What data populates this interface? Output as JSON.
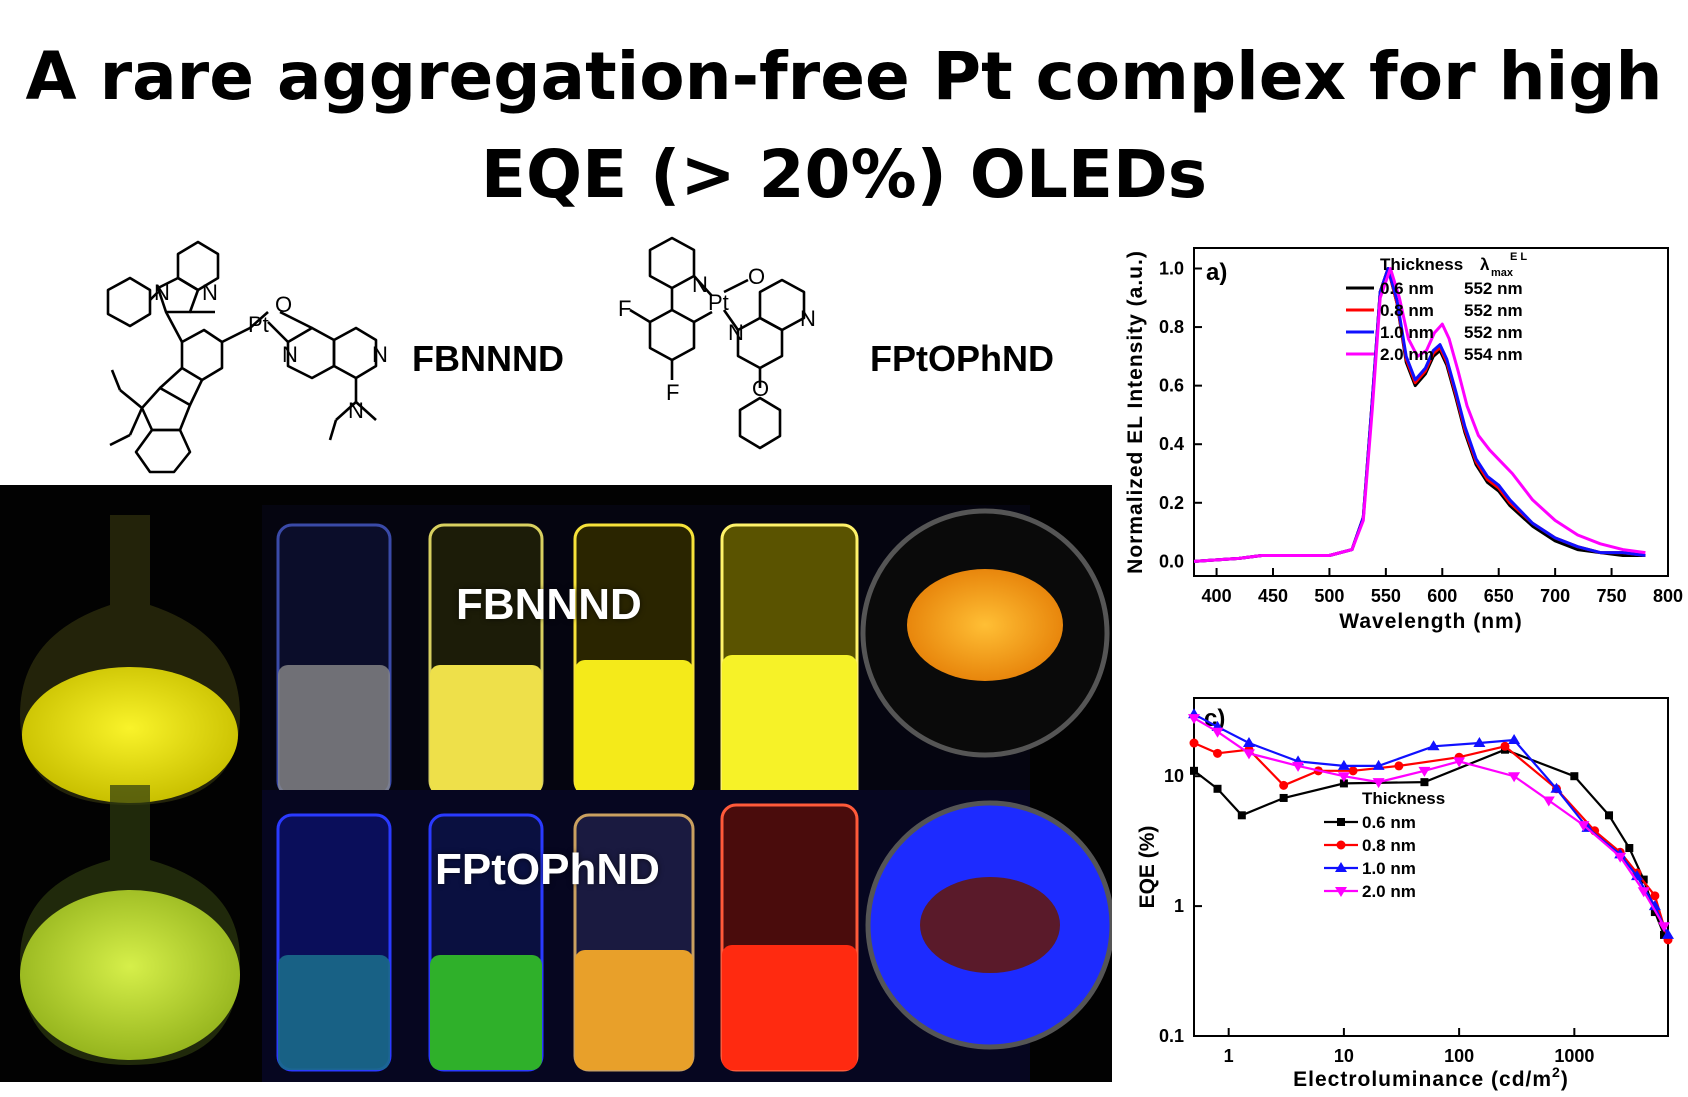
{
  "title": {
    "line1": "A rare aggregation-free Pt complex for high",
    "line2": "EQE (> 20%) OLEDs"
  },
  "molecules": [
    {
      "name": "FBNNND"
    },
    {
      "name": "FPtOPhND"
    }
  ],
  "photo": {
    "label_top": "FBNNND",
    "label_bottom": "FPtOPhND",
    "colors": {
      "yellow": "#f4f000",
      "green_yellow": "#c8e83a",
      "orange_powder": "#f6a21a",
      "red_vial": "#ff2a10",
      "blue_glow": "#1d2bff"
    }
  },
  "chart_data": [
    {
      "type": "line",
      "panel_label": "a)",
      "xlabel": "Wavelength (nm)",
      "ylabel": "Normalized EL Intensity (a.u.)",
      "xlim": [
        380,
        800
      ],
      "ylim": [
        -0.05,
        1.07
      ],
      "xticks": [
        "400",
        "450",
        "500",
        "550",
        "600",
        "650",
        "700",
        "750",
        "800"
      ],
      "yticks": [
        "0.0",
        "0.2",
        "0.4",
        "0.6",
        "0.8",
        "1.0"
      ],
      "legend_header": "Thickness",
      "legend_header_symbol": "λ",
      "legend_header_sub": "max",
      "legend_header_sup": "E L",
      "legend_position": "top-right",
      "series": [
        {
          "name": "0.6 nm",
          "lambda": "552 nm",
          "color": "#000000",
          "x": [
            380,
            420,
            440,
            460,
            480,
            500,
            520,
            530,
            538,
            545,
            552,
            560,
            568,
            576,
            585,
            592,
            598,
            604,
            612,
            620,
            630,
            640,
            650,
            660,
            680,
            700,
            720,
            740,
            760,
            780
          ],
          "y": [
            0.0,
            0.01,
            0.02,
            0.02,
            0.02,
            0.02,
            0.04,
            0.15,
            0.55,
            0.92,
            1.0,
            0.88,
            0.68,
            0.6,
            0.64,
            0.7,
            0.72,
            0.67,
            0.56,
            0.44,
            0.33,
            0.27,
            0.24,
            0.19,
            0.12,
            0.07,
            0.04,
            0.03,
            0.02,
            0.02
          ]
        },
        {
          "name": "0.8 nm",
          "lambda": "552 nm",
          "color": "#ff0000",
          "x": [
            380,
            420,
            440,
            460,
            480,
            500,
            520,
            530,
            538,
            545,
            552,
            560,
            568,
            576,
            585,
            592,
            598,
            604,
            612,
            620,
            630,
            640,
            650,
            660,
            680,
            700,
            720,
            740,
            760,
            780
          ],
          "y": [
            0.0,
            0.01,
            0.02,
            0.02,
            0.02,
            0.02,
            0.04,
            0.15,
            0.55,
            0.92,
            1.0,
            0.88,
            0.69,
            0.61,
            0.65,
            0.71,
            0.73,
            0.68,
            0.57,
            0.45,
            0.34,
            0.28,
            0.25,
            0.2,
            0.13,
            0.08,
            0.05,
            0.03,
            0.03,
            0.02
          ]
        },
        {
          "name": "1.0 nm",
          "lambda": "552 nm",
          "color": "#1010ff",
          "x": [
            380,
            420,
            440,
            460,
            480,
            500,
            520,
            530,
            538,
            545,
            552,
            560,
            568,
            576,
            585,
            592,
            598,
            604,
            612,
            620,
            630,
            640,
            650,
            660,
            680,
            700,
            720,
            740,
            760,
            780
          ],
          "y": [
            0.0,
            0.01,
            0.02,
            0.02,
            0.02,
            0.02,
            0.04,
            0.15,
            0.55,
            0.92,
            1.0,
            0.89,
            0.7,
            0.62,
            0.66,
            0.72,
            0.74,
            0.69,
            0.58,
            0.46,
            0.35,
            0.29,
            0.26,
            0.21,
            0.13,
            0.08,
            0.05,
            0.03,
            0.03,
            0.02
          ]
        },
        {
          "name": "2.0 nm",
          "lambda": "554 nm",
          "color": "#ff00ff",
          "x": [
            380,
            420,
            440,
            460,
            480,
            500,
            520,
            530,
            538,
            545,
            554,
            562,
            570,
            578,
            586,
            593,
            600,
            606,
            614,
            622,
            632,
            642,
            652,
            662,
            680,
            700,
            720,
            740,
            760,
            780
          ],
          "y": [
            0.0,
            0.01,
            0.02,
            0.02,
            0.02,
            0.02,
            0.04,
            0.14,
            0.52,
            0.9,
            1.0,
            0.9,
            0.76,
            0.7,
            0.72,
            0.78,
            0.81,
            0.76,
            0.65,
            0.53,
            0.43,
            0.38,
            0.34,
            0.3,
            0.21,
            0.14,
            0.09,
            0.06,
            0.04,
            0.03
          ]
        }
      ]
    },
    {
      "type": "line",
      "panel_label": "c)",
      "xlabel": "Electroluminance (cd/m",
      "xlabel_sup": "2",
      "xlabel_end": ")",
      "ylabel": "EQE (%)",
      "xscale": "log",
      "yscale": "log",
      "xlim": [
        0.5,
        6500
      ],
      "ylim": [
        0.1,
        40
      ],
      "xticks": [
        "1",
        "10",
        "100",
        "1000"
      ],
      "yticks": [
        "0.1",
        "1",
        "10"
      ],
      "legend_header": "Thickness",
      "legend_position": "lower-middle",
      "series": [
        {
          "name": "0.6 nm",
          "color": "#000000",
          "marker": "square",
          "x": [
            0.5,
            0.8,
            1.3,
            3,
            10,
            50,
            250,
            1000,
            2000,
            3000,
            4000,
            5000,
            6000
          ],
          "y": [
            11,
            8,
            5,
            6.8,
            8.8,
            9,
            16,
            10,
            5,
            2.8,
            1.6,
            0.9,
            0.6
          ]
        },
        {
          "name": "0.8 nm",
          "color": "#ff0000",
          "marker": "circle",
          "x": [
            0.5,
            0.8,
            1.5,
            3,
            6,
            12,
            30,
            100,
            250,
            700,
            1500,
            2500,
            3500,
            5000,
            6500
          ],
          "y": [
            18,
            15,
            16,
            8.5,
            11,
            11,
            12,
            14,
            17,
            8,
            3.8,
            2.6,
            1.8,
            1.2,
            0.55
          ]
        },
        {
          "name": "1.0 nm",
          "color": "#1010ff",
          "marker": "triangle-up",
          "x": [
            0.5,
            0.8,
            1.5,
            4,
            10,
            20,
            60,
            150,
            300,
            700,
            1300,
            2500,
            3500,
            5000,
            6500
          ],
          "y": [
            30,
            24,
            18,
            13,
            12,
            12,
            17,
            18,
            19,
            8,
            4,
            2.5,
            1.7,
            1.0,
            0.6
          ]
        },
        {
          "name": "2.0 nm",
          "color": "#ff00ff",
          "marker": "triangle-down",
          "x": [
            0.5,
            0.8,
            1.5,
            4,
            10,
            20,
            50,
            100,
            300,
            600,
            1200,
            2500,
            4000,
            6000
          ],
          "y": [
            28,
            22,
            15,
            12,
            10,
            9,
            11,
            13,
            10,
            6.5,
            4.2,
            2.4,
            1.3,
            0.7
          ]
        }
      ]
    }
  ]
}
